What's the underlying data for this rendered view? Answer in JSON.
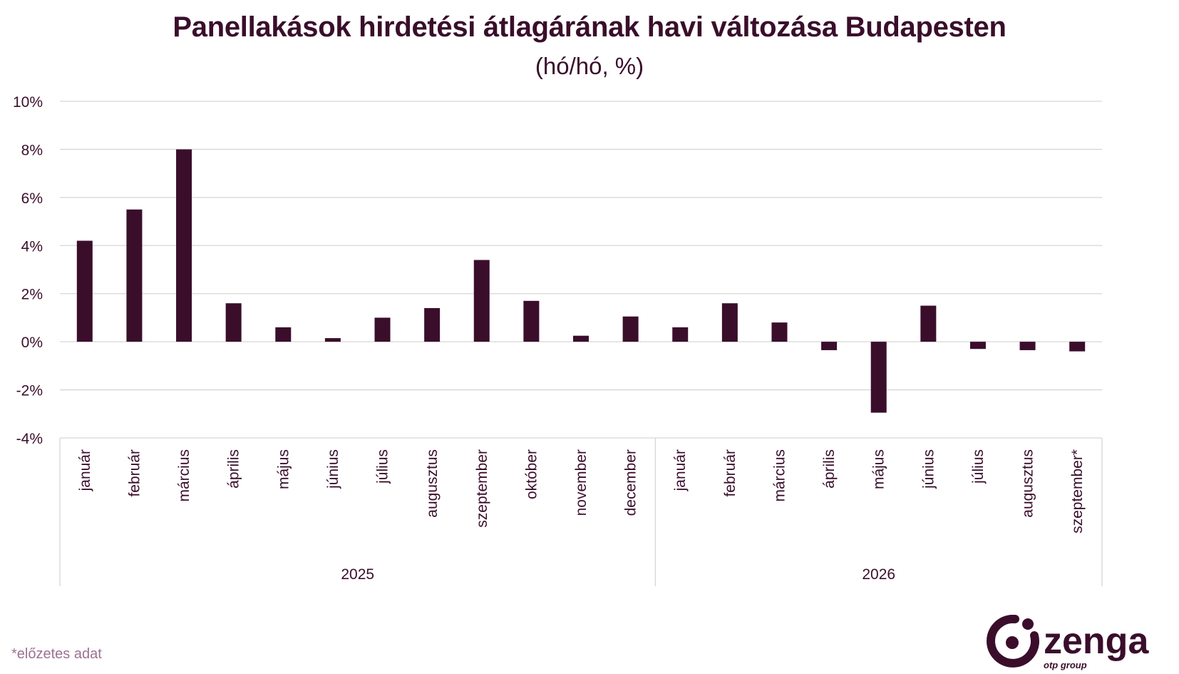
{
  "title": "Panellakások hirdetési átlagárának havi változása Budapesten",
  "subtitle": "(hó/hó, %)",
  "footnote": "*előzetes adat",
  "brand": {
    "name": "zenga",
    "sub": "otp group"
  },
  "colors": {
    "bar": "#3a0e2b",
    "grid": "#d6d6d6",
    "text": "#3a0e2b",
    "footnote": "#9b7290"
  },
  "chart_data": {
    "type": "bar",
    "title": "Panellakások hirdetési átlagárának havi változása Budapesten",
    "subtitle": "(hó/hó, %)",
    "xlabel": "",
    "ylabel": "",
    "ylim": [
      -4,
      10
    ],
    "yticks": [
      -4,
      -2,
      0,
      2,
      4,
      6,
      8,
      10
    ],
    "ytick_labels": [
      "-4%",
      "-2%",
      "0%",
      "2%",
      "4%",
      "6%",
      "8%",
      "10%"
    ],
    "grid": true,
    "groups": [
      {
        "label": "2025",
        "count": 12
      },
      {
        "label": "2026",
        "count": 9
      }
    ],
    "categories": [
      "január",
      "február",
      "március",
      "április",
      "május",
      "június",
      "július",
      "augusztus",
      "szeptember",
      "október",
      "november",
      "december",
      "január",
      "február",
      "március",
      "április",
      "május",
      "június",
      "július",
      "augusztus",
      "szeptember*"
    ],
    "values": [
      4.2,
      5.5,
      8.0,
      1.6,
      0.6,
      0.15,
      1.0,
      1.4,
      3.4,
      1.7,
      0.25,
      1.05,
      0.6,
      1.6,
      0.8,
      -0.35,
      -2.95,
      1.5,
      -0.3,
      -0.35,
      -0.4
    ]
  }
}
